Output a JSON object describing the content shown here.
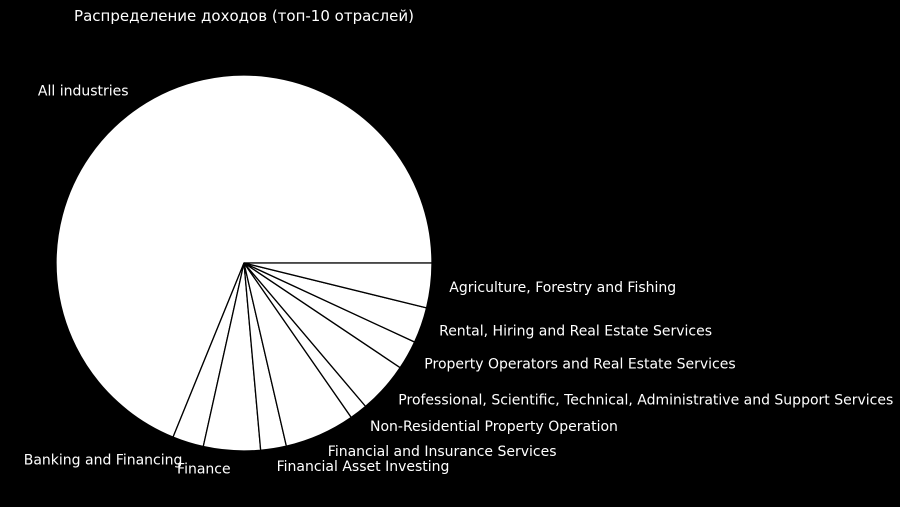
{
  "chart_data": {
    "type": "pie",
    "title": "Распределение доходов (топ-10 отраслей)",
    "slice_color": "#ffffff",
    "edge_color": "#000000",
    "background": "#000000",
    "slices": [
      {
        "label": "All industries",
        "value": 71.8
      },
      {
        "label": "Banking and Financing",
        "value": 2.8
      },
      {
        "label": "Finance",
        "value": 5.1
      },
      {
        "label": "Financial Asset Investing",
        "value": 2.3
      },
      {
        "label": "Financial and Insurance Services",
        "value": 6.3
      },
      {
        "label": "Non-Residential Property Operation",
        "value": 1.6
      },
      {
        "label": "Professional, Scientific, Technical, Administrative and Support Services",
        "value": 4.6
      },
      {
        "label": "Property Operators and Real Estate Services",
        "value": 2.6
      },
      {
        "label": "Rental, Hiring and Real Estate Services",
        "value": 3.2
      },
      {
        "label": "Agriculture, Forestry and Fishing",
        "value": 4.0
      }
    ]
  }
}
